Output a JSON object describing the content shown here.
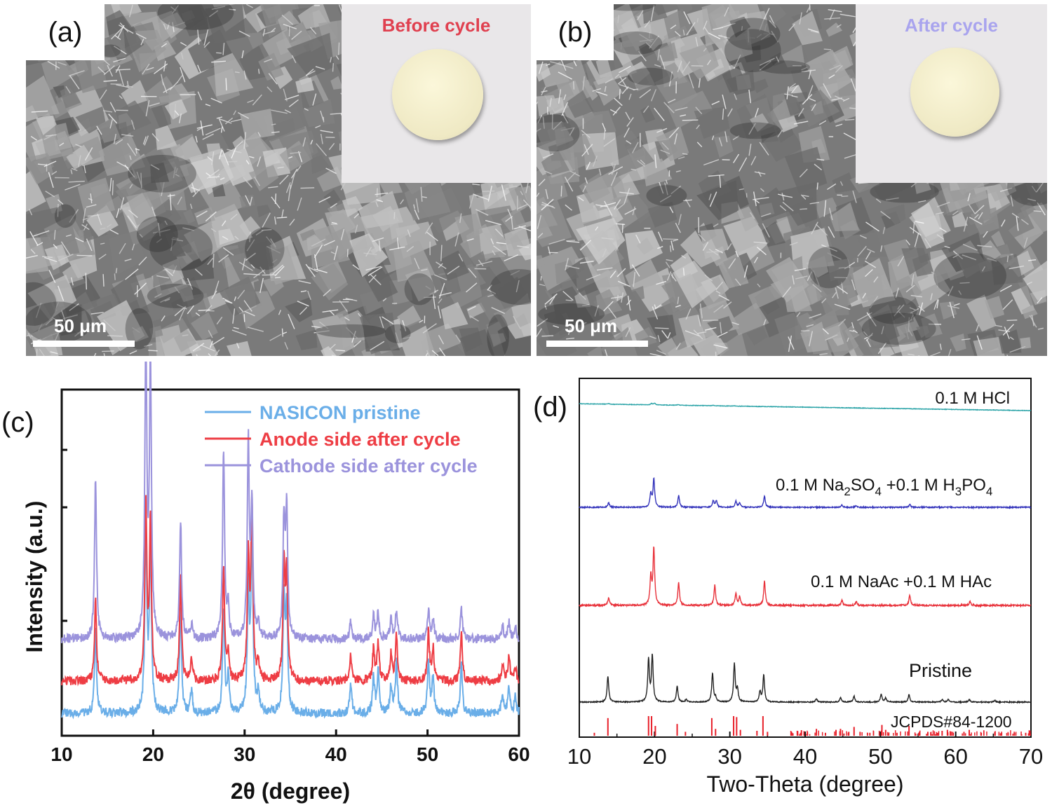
{
  "panels": {
    "a": {
      "label": "(a)",
      "inset_title": "Before cycle",
      "inset_title_color": "#e0404f",
      "scale_bar": "50 μm"
    },
    "b": {
      "label": "(b)",
      "inset_title": "After cycle",
      "inset_title_color": "#a9a4ee",
      "scale_bar": "50 μm"
    },
    "c": {
      "label": "(c)"
    },
    "d": {
      "label": "(d)"
    }
  },
  "chart_data": [
    {
      "panel": "c",
      "type": "line",
      "xlabel": "2θ (degree)",
      "ylabel": "Intensity (a.u.)",
      "xlim": [
        10,
        60
      ],
      "xticks": [
        10,
        20,
        30,
        40,
        50,
        60
      ],
      "legend_position": "top-right",
      "series": [
        {
          "name": "NASICON pristine",
          "color": "#6aaee8",
          "offset": 0,
          "peaks": [
            [
              13.7,
              0.28
            ],
            [
              19.2,
              0.62
            ],
            [
              19.7,
              0.58
            ],
            [
              23.0,
              0.36
            ],
            [
              24.2,
              0.08
            ],
            [
              27.7,
              0.36
            ],
            [
              28.2,
              0.12
            ],
            [
              30.4,
              0.4
            ],
            [
              30.8,
              0.62
            ],
            [
              31.5,
              0.07
            ],
            [
              34.3,
              0.38
            ],
            [
              34.6,
              0.35
            ],
            [
              41.6,
              0.1
            ],
            [
              44.1,
              0.12
            ],
            [
              44.6,
              0.14
            ],
            [
              46.0,
              0.1
            ],
            [
              46.6,
              0.18
            ],
            [
              50.1,
              0.18
            ],
            [
              50.6,
              0.12
            ],
            [
              53.7,
              0.17
            ],
            [
              58.2,
              0.07
            ],
            [
              58.9,
              0.09
            ],
            [
              59.6,
              0.06
            ]
          ]
        },
        {
          "name": "Anode side after cycle",
          "color": "#ee3d44",
          "offset": 1,
          "peaks": [
            [
              13.7,
              0.27
            ],
            [
              19.2,
              0.6
            ],
            [
              19.7,
              0.55
            ],
            [
              23.0,
              0.35
            ],
            [
              24.2,
              0.08
            ],
            [
              27.7,
              0.38
            ],
            [
              28.2,
              0.1
            ],
            [
              30.4,
              0.42
            ],
            [
              30.8,
              0.6
            ],
            [
              31.5,
              0.06
            ],
            [
              34.3,
              0.38
            ],
            [
              34.6,
              0.36
            ],
            [
              41.6,
              0.09
            ],
            [
              44.1,
              0.11
            ],
            [
              44.6,
              0.13
            ],
            [
              46.0,
              0.09
            ],
            [
              46.6,
              0.16
            ],
            [
              50.1,
              0.17
            ],
            [
              50.6,
              0.11
            ],
            [
              53.7,
              0.16
            ],
            [
              58.2,
              0.06
            ],
            [
              58.9,
              0.08
            ],
            [
              59.6,
              0.05
            ]
          ]
        },
        {
          "name": "Cathode side after cycle",
          "color": "#9b93dc",
          "offset": 2,
          "peaks": [
            [
              13.7,
              0.55
            ],
            [
              19.2,
              1.0
            ],
            [
              19.7,
              0.94
            ],
            [
              23.0,
              0.4
            ],
            [
              24.2,
              0.05
            ],
            [
              27.7,
              0.64
            ],
            [
              28.2,
              0.1
            ],
            [
              30.4,
              0.66
            ],
            [
              30.8,
              0.44
            ],
            [
              31.5,
              0.05
            ],
            [
              34.3,
              0.4
            ],
            [
              34.6,
              0.43
            ],
            [
              41.6,
              0.06
            ],
            [
              44.1,
              0.08
            ],
            [
              44.6,
              0.09
            ],
            [
              46.0,
              0.07
            ],
            [
              46.6,
              0.1
            ],
            [
              50.1,
              0.1
            ],
            [
              50.6,
              0.07
            ],
            [
              53.7,
              0.1
            ],
            [
              58.2,
              0.05
            ],
            [
              58.9,
              0.06
            ],
            [
              59.6,
              0.04
            ]
          ]
        }
      ]
    },
    {
      "panel": "d",
      "type": "line",
      "xlabel": "Two-Theta (degree)",
      "ylabel": "",
      "xlim": [
        10,
        70
      ],
      "xticks": [
        10,
        20,
        30,
        40,
        50,
        60,
        70
      ],
      "series": [
        {
          "name": "JCPDS#84-1200",
          "color": "#e8202a",
          "kind": "reference",
          "peaks": [
            [
              12.0,
              0.15
            ],
            [
              13.8,
              0.9
            ],
            [
              19.2,
              1.0
            ],
            [
              19.6,
              1.0
            ],
            [
              20.1,
              0.5
            ],
            [
              23.0,
              0.6
            ],
            [
              24.1,
              0.2
            ],
            [
              27.6,
              0.9
            ],
            [
              28.1,
              0.35
            ],
            [
              30.5,
              1.0
            ],
            [
              30.9,
              0.95
            ],
            [
              31.4,
              0.3
            ],
            [
              33.6,
              0.25
            ],
            [
              34.4,
              1.0
            ],
            [
              35.0,
              0.2
            ],
            [
              39.4,
              0.15
            ],
            [
              40.3,
              0.2
            ],
            [
              41.5,
              0.35
            ],
            [
              42.7,
              0.15
            ],
            [
              44.1,
              0.3
            ],
            [
              44.7,
              0.35
            ],
            [
              45.8,
              0.2
            ],
            [
              46.5,
              0.45
            ],
            [
              47.3,
              0.2
            ],
            [
              48.6,
              0.15
            ],
            [
              50.2,
              0.55
            ],
            [
              50.7,
              0.3
            ],
            [
              52.2,
              0.15
            ],
            [
              53.8,
              0.5
            ],
            [
              55.1,
              0.15
            ],
            [
              56.3,
              0.2
            ],
            [
              57.6,
              0.15
            ],
            [
              58.2,
              0.25
            ],
            [
              58.9,
              0.3
            ],
            [
              59.6,
              0.2
            ],
            [
              61.1,
              0.2
            ],
            [
              61.8,
              0.3
            ],
            [
              63.4,
              0.15
            ],
            [
              65.2,
              0.2
            ],
            [
              66.1,
              0.15
            ],
            [
              67.8,
              0.15
            ],
            [
              69.3,
              0.15
            ]
          ]
        },
        {
          "name": "Pristine",
          "color": "#222222",
          "peaks": [
            [
              13.8,
              0.62
            ],
            [
              19.2,
              1.0
            ],
            [
              19.7,
              1.1
            ],
            [
              23.0,
              0.37
            ],
            [
              24.2,
              0.06
            ],
            [
              27.7,
              0.68
            ],
            [
              28.1,
              0.1
            ],
            [
              30.6,
              0.9
            ],
            [
              31.0,
              0.3
            ],
            [
              34.0,
              0.25
            ],
            [
              34.5,
              0.64
            ],
            [
              41.5,
              0.08
            ],
            [
              44.7,
              0.1
            ],
            [
              46.5,
              0.14
            ],
            [
              50.1,
              0.18
            ],
            [
              50.7,
              0.1
            ],
            [
              53.8,
              0.18
            ],
            [
              58.2,
              0.06
            ],
            [
              59.0,
              0.06
            ],
            [
              61.8,
              0.06
            ],
            [
              65.2,
              0.04
            ]
          ]
        },
        {
          "name": "0.1 M NaAc +0.1 M HAc",
          "color": "#e8313a",
          "peaks": [
            [
              13.9,
              0.12
            ],
            [
              19.5,
              0.46
            ],
            [
              19.9,
              0.9
            ],
            [
              23.2,
              0.36
            ],
            [
              28.0,
              0.32
            ],
            [
              30.8,
              0.18
            ],
            [
              31.3,
              0.14
            ],
            [
              34.6,
              0.38
            ],
            [
              44.9,
              0.08
            ],
            [
              46.8,
              0.06
            ],
            [
              53.9,
              0.16
            ],
            [
              61.9,
              0.06
            ]
          ]
        },
        {
          "name": "0.1 M Na2SO4 +0.1 M H3PO4",
          "color": "#3333bb",
          "peaks": [
            [
              13.9,
              0.1
            ],
            [
              19.5,
              0.3
            ],
            [
              19.9,
              0.62
            ],
            [
              23.2,
              0.26
            ],
            [
              27.8,
              0.14
            ],
            [
              28.2,
              0.14
            ],
            [
              30.8,
              0.14
            ],
            [
              31.3,
              0.1
            ],
            [
              34.6,
              0.24
            ],
            [
              44.9,
              0.05
            ],
            [
              46.8,
              0.04
            ],
            [
              53.9,
              0.06
            ]
          ]
        },
        {
          "name": "0.1 M HCl",
          "color": "#2aa3a7",
          "peaks": [
            [
              13.9,
              0.03
            ],
            [
              19.6,
              0.07
            ],
            [
              20.0,
              0.09
            ],
            [
              23.1,
              0.03
            ],
            [
              27.7,
              0.03
            ],
            [
              30.6,
              0.02
            ]
          ]
        }
      ]
    }
  ],
  "legend_c": [
    {
      "label": "NASICON pristine",
      "color": "#6aaee8"
    },
    {
      "label": "Anode side after cycle",
      "color": "#ee3d44"
    },
    {
      "label": "Cathode side after cycle",
      "color": "#9b93dc"
    }
  ],
  "labels_d": {
    "hcl": "0.1 M HCl",
    "na2so4_parts": [
      "0.1 M Na",
      "2",
      "SO",
      "4",
      " +0.1 M H",
      "3",
      "PO",
      "4"
    ],
    "naac": "0.1 M NaAc +0.1 M HAc",
    "pristine": "Pristine",
    "jcpds": "JCPDS#84-1200"
  }
}
